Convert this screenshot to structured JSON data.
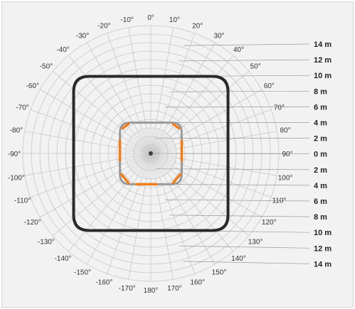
{
  "angle_labels": [
    "0°",
    "10°",
    "20°",
    "30°",
    "40°",
    "50°",
    "60°",
    "70°",
    "80°",
    "90°",
    "100°",
    "110°",
    "120°",
    "130°",
    "140°",
    "150°",
    "160°",
    "170°",
    "180°",
    "-170°",
    "-160°",
    "-150°",
    "-140°",
    "-130°",
    "-120°",
    "-110°",
    "-100°",
    "-90°",
    "-80°",
    "-70°",
    "-60°",
    "-50°",
    "-40°",
    "-30°",
    "-20°",
    "-10°"
  ],
  "distance_labels": [
    "14 m",
    "12 m",
    "10 m",
    "8 m",
    "6 m",
    "4 m",
    "2 m",
    "0 m",
    "2 m",
    "4 m",
    "6 m",
    "8 m",
    "10 m",
    "12 m",
    "14 m"
  ],
  "colors": {
    "background": "#f2f2f2",
    "grid": "#c8c8c8",
    "outer_zone": "#2a2a2a",
    "inner_zone": "#9a9a9a",
    "inner_accent": "#f07d1a"
  },
  "chart_data": {
    "type": "polar-detection-zones",
    "angles": [
      0,
      10,
      20,
      30,
      40,
      50,
      60,
      70,
      80,
      90,
      100,
      110,
      120,
      130,
      140,
      150,
      160,
      170,
      180,
      -170,
      -160,
      -150,
      -140,
      -130,
      -120,
      -110,
      -100,
      -90,
      -80,
      -70,
      -60,
      -50,
      -40,
      -30,
      -20,
      -10
    ],
    "distance_ticks_m": [
      14,
      12,
      10,
      8,
      6,
      4,
      2,
      0,
      2,
      4,
      6,
      8,
      10,
      12,
      14
    ],
    "outer_zone": {
      "half_width_m": 10,
      "corner_radius_m": 2
    },
    "inner_zone": {
      "half_width_m": 4,
      "corner_radius_m": 1.3
    }
  }
}
